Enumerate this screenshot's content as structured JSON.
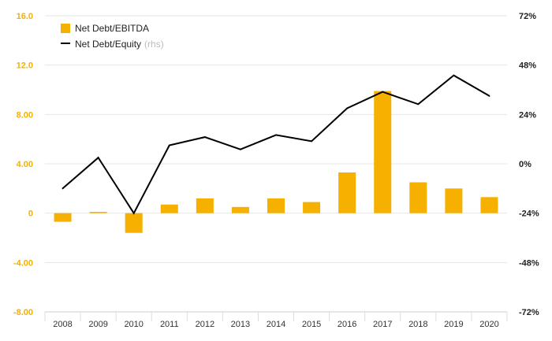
{
  "chart_data": {
    "type": "bar+line",
    "categories": [
      "2008",
      "2009",
      "2010",
      "2011",
      "2012",
      "2013",
      "2014",
      "2015",
      "2016",
      "2017",
      "2018",
      "2019",
      "2020"
    ],
    "series": [
      {
        "name": "Net Debt/EBITDA",
        "type": "bar",
        "axis": "left",
        "color": "#F5B000",
        "values": [
          -0.7,
          0.1,
          -1.6,
          0.7,
          1.2,
          0.5,
          1.2,
          0.9,
          3.3,
          9.9,
          2.5,
          2.0,
          1.3
        ]
      },
      {
        "name": "Net Debt/Equity",
        "name_suffix": "(rhs)",
        "type": "line",
        "axis": "right",
        "color": "#000000",
        "values": [
          -12,
          3,
          -24,
          9,
          13,
          7,
          14,
          11,
          27,
          35,
          29,
          43,
          33
        ]
      }
    ],
    "left_axis": {
      "ylim": [
        -8,
        16
      ],
      "ticks": [
        -8,
        -4,
        0,
        4,
        8,
        12,
        16
      ],
      "tick_labels": [
        "-8.00",
        "-4.00",
        "0",
        "4.00",
        "8.00",
        "12.0",
        "16.0"
      ],
      "color": "#F5B000"
    },
    "right_axis": {
      "ylim": [
        -72,
        72
      ],
      "ticks": [
        -72,
        -48,
        -24,
        0,
        24,
        48,
        72
      ],
      "tick_labels": [
        "-72%",
        "-48%",
        "-24%",
        "0%",
        "24%",
        "48%",
        "72%"
      ]
    },
    "grid": true,
    "legend_position": "top-left",
    "muted_color": "#BBBBBB"
  }
}
